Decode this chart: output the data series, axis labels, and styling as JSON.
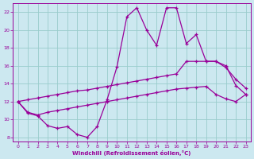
{
  "xlabel": "Windchill (Refroidissement éolien,°C)",
  "bg_color": "#cce8f0",
  "line_color": "#990099",
  "grid_color": "#99cccc",
  "xlim": [
    -0.5,
    23.5
  ],
  "ylim": [
    7.5,
    23
  ],
  "xticks": [
    0,
    1,
    2,
    3,
    4,
    5,
    6,
    7,
    8,
    9,
    10,
    11,
    12,
    13,
    14,
    15,
    16,
    17,
    18,
    19,
    20,
    21,
    22,
    23
  ],
  "yticks": [
    8,
    10,
    12,
    14,
    16,
    18,
    20,
    22
  ],
  "main_x": [
    0,
    1,
    2,
    3,
    4,
    5,
    6,
    7,
    8,
    9,
    10,
    11,
    12,
    13,
    14,
    15,
    16,
    17,
    18,
    19,
    20,
    21,
    22,
    23
  ],
  "main_y": [
    12,
    10.7,
    10.4,
    9.3,
    9.0,
    9.2,
    8.3,
    8.0,
    9.2,
    12.2,
    15.9,
    21.5,
    22.5,
    20.0,
    18.3,
    22.5,
    22.5,
    18.5,
    19.5,
    16.5,
    16.5,
    16.0,
    13.8,
    12.8
  ],
  "upper_x": [
    0,
    1,
    2,
    3,
    4,
    5,
    6,
    7,
    8,
    9,
    10,
    11,
    12,
    13,
    14,
    15,
    16,
    17,
    18,
    19,
    20,
    21,
    22,
    23
  ],
  "upper_y": [
    12.0,
    12.2,
    12.4,
    12.6,
    12.8,
    13.0,
    13.2,
    13.3,
    13.5,
    13.7,
    13.9,
    14.1,
    14.3,
    14.5,
    14.7,
    14.9,
    15.1,
    16.5,
    16.5,
    16.5,
    16.5,
    15.8,
    14.5,
    13.5
  ],
  "lower_x": [
    0,
    1,
    2,
    3,
    4,
    5,
    6,
    7,
    8,
    9,
    10,
    11,
    12,
    13,
    14,
    15,
    16,
    17,
    18,
    19,
    20,
    21,
    22,
    23
  ],
  "lower_y": [
    12.0,
    10.8,
    10.5,
    10.8,
    11.0,
    11.2,
    11.4,
    11.6,
    11.8,
    12.0,
    12.2,
    12.4,
    12.6,
    12.8,
    13.0,
    13.2,
    13.4,
    13.5,
    13.6,
    13.7,
    12.8,
    12.3,
    12.0,
    12.8
  ]
}
